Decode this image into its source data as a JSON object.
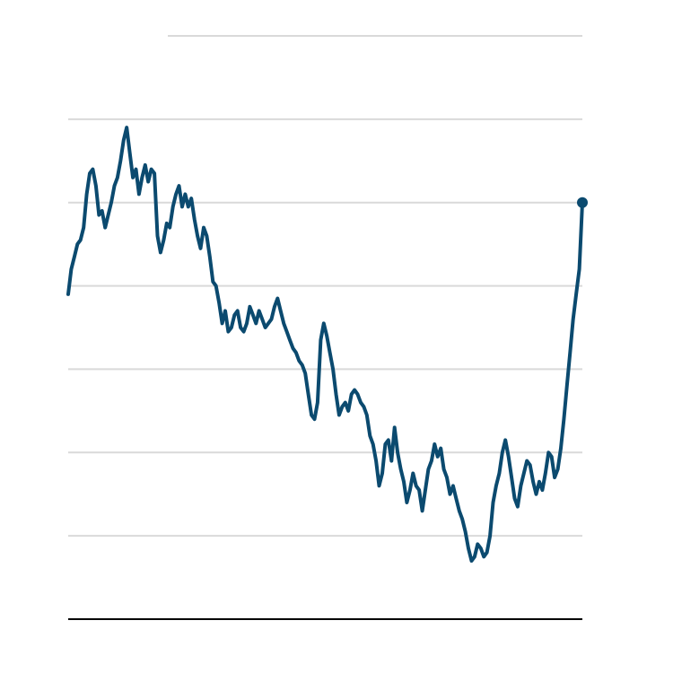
{
  "chart_data": {
    "type": "line",
    "title": "",
    "xlabel": "",
    "ylabel": "",
    "grid": true,
    "grid_lines": 7,
    "ylim": [
      0,
      7
    ],
    "colors": {
      "line": "#0b4a6f",
      "grid": "#d9d9d9",
      "axis": "#000000"
    },
    "series": [
      {
        "values": [
          3.9,
          4.2,
          4.35,
          4.5,
          4.55,
          4.7,
          5.1,
          5.35,
          5.4,
          5.2,
          4.85,
          4.9,
          4.7,
          4.85,
          5.0,
          5.2,
          5.3,
          5.5,
          5.75,
          5.9,
          5.6,
          5.3,
          5.4,
          5.1,
          5.3,
          5.45,
          5.25,
          5.4,
          5.35,
          4.6,
          4.4,
          4.55,
          4.75,
          4.7,
          4.95,
          5.1,
          5.2,
          4.95,
          5.1,
          4.95,
          5.05,
          4.8,
          4.6,
          4.45,
          4.7,
          4.6,
          4.35,
          4.05,
          4.0,
          3.8,
          3.55,
          3.7,
          3.45,
          3.5,
          3.65,
          3.7,
          3.5,
          3.45,
          3.55,
          3.75,
          3.65,
          3.55,
          3.7,
          3.6,
          3.5,
          3.55,
          3.6,
          3.75,
          3.85,
          3.7,
          3.55,
          3.45,
          3.35,
          3.25,
          3.2,
          3.1,
          3.05,
          2.95,
          2.7,
          2.45,
          2.4,
          2.6,
          3.35,
          3.55,
          3.4,
          3.2,
          3.0,
          2.7,
          2.45,
          2.55,
          2.6,
          2.5,
          2.7,
          2.75,
          2.7,
          2.6,
          2.55,
          2.45,
          2.2,
          2.1,
          1.9,
          1.6,
          1.75,
          2.1,
          2.15,
          1.9,
          2.3,
          2.0,
          1.8,
          1.65,
          1.4,
          1.55,
          1.75,
          1.6,
          1.55,
          1.3,
          1.55,
          1.8,
          1.9,
          2.1,
          1.95,
          2.05,
          1.8,
          1.7,
          1.5,
          1.6,
          1.45,
          1.3,
          1.2,
          1.05,
          0.85,
          0.7,
          0.75,
          0.9,
          0.85,
          0.75,
          0.8,
          1.0,
          1.4,
          1.6,
          1.75,
          2.0,
          2.15,
          1.95,
          1.7,
          1.45,
          1.35,
          1.6,
          1.75,
          1.9,
          1.85,
          1.65,
          1.5,
          1.65,
          1.55,
          1.75,
          2.0,
          1.95,
          1.7,
          1.8,
          2.05,
          2.4,
          2.8,
          3.2,
          3.6,
          3.9,
          4.2,
          5.0
        ]
      }
    ]
  }
}
